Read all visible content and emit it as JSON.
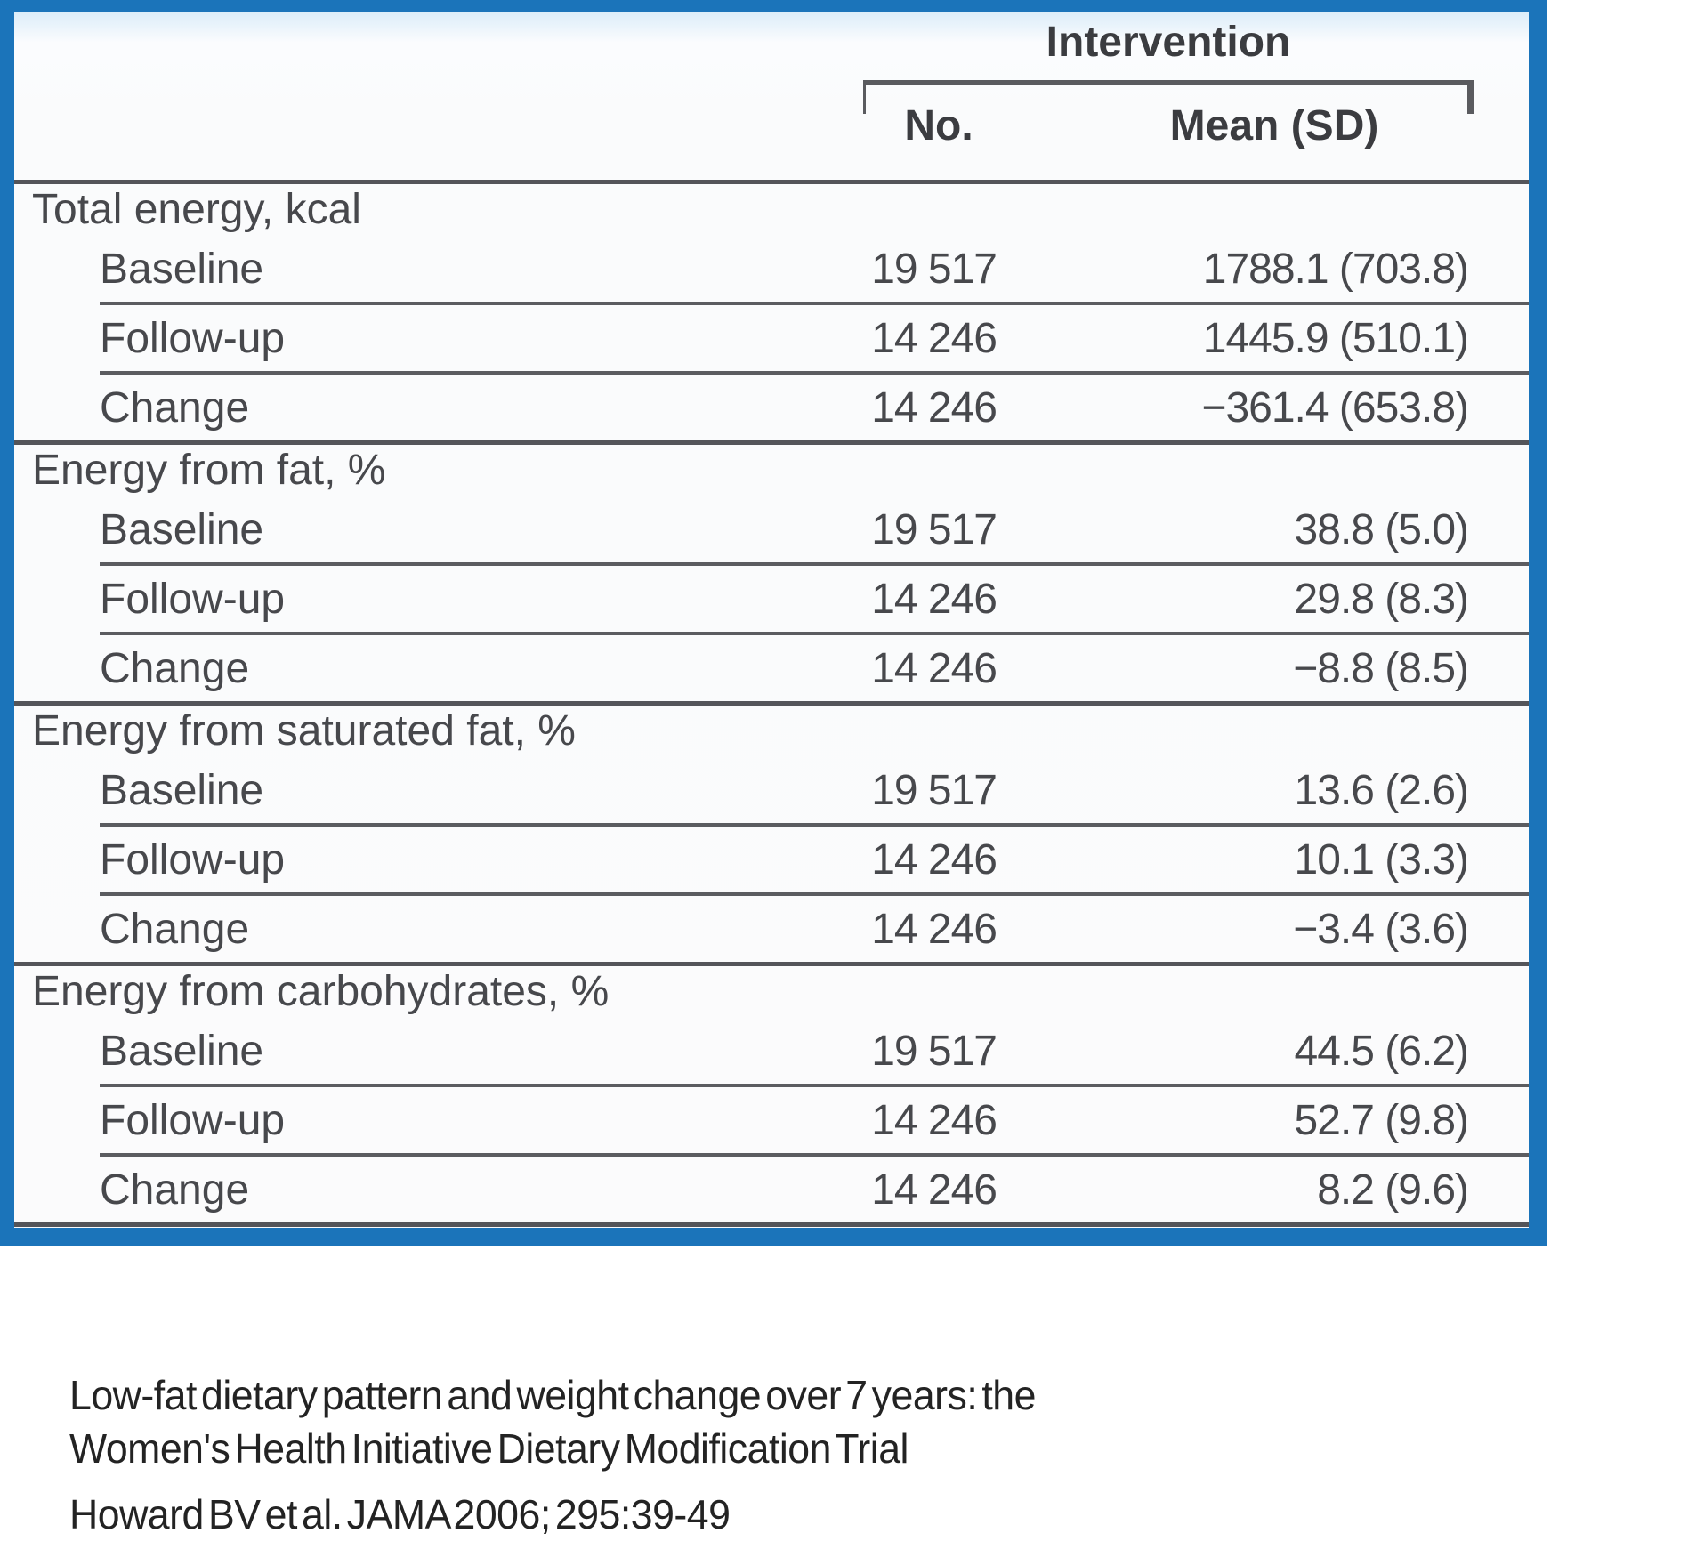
{
  "colors": {
    "frame_blue": "#1b74ba",
    "rule_gray": "#54555a"
  },
  "table": {
    "col_group_header": "Intervention",
    "columns": {
      "no": "No.",
      "mean": "Mean (SD)"
    },
    "sections": [
      {
        "label": "Total energy, kcal",
        "rows": [
          {
            "label": "Baseline",
            "no": "19 517",
            "mean": "1788.1 (703.8)"
          },
          {
            "label": "Follow-up",
            "no": "14 246",
            "mean": "1445.9 (510.1)"
          },
          {
            "label": "Change",
            "no": "14 246",
            "mean": "−361.4 (653.8)"
          }
        ]
      },
      {
        "label": "Energy from fat, %",
        "rows": [
          {
            "label": "Baseline",
            "no": "19 517",
            "mean": "38.8 (5.0)"
          },
          {
            "label": "Follow-up",
            "no": "14 246",
            "mean": "29.8 (8.3)"
          },
          {
            "label": "Change",
            "no": "14 246",
            "mean": "−8.8 (8.5)"
          }
        ]
      },
      {
        "label": "Energy from saturated fat, %",
        "rows": [
          {
            "label": "Baseline",
            "no": "19 517",
            "mean": "13.6 (2.6)"
          },
          {
            "label": "Follow-up",
            "no": "14 246",
            "mean": "10.1 (3.3)"
          },
          {
            "label": "Change",
            "no": "14 246",
            "mean": "−3.4 (3.6)"
          }
        ]
      },
      {
        "label": "Energy from carbohydrates, %",
        "rows": [
          {
            "label": "Baseline",
            "no": "19 517",
            "mean": "44.5 (6.2)"
          },
          {
            "label": "Follow-up",
            "no": "14 246",
            "mean": "52.7 (9.8)"
          },
          {
            "label": "Change",
            "no": "14 246",
            "mean": "8.2 (9.6)"
          }
        ]
      }
    ]
  },
  "caption": {
    "line1": "Low-fat dietary pattern and weight change over 7 years: the",
    "line2": "Women's Health Initiative Dietary Modification Trial",
    "line3": "Howard BV et al. JAMA 2006;  295:39-49"
  }
}
